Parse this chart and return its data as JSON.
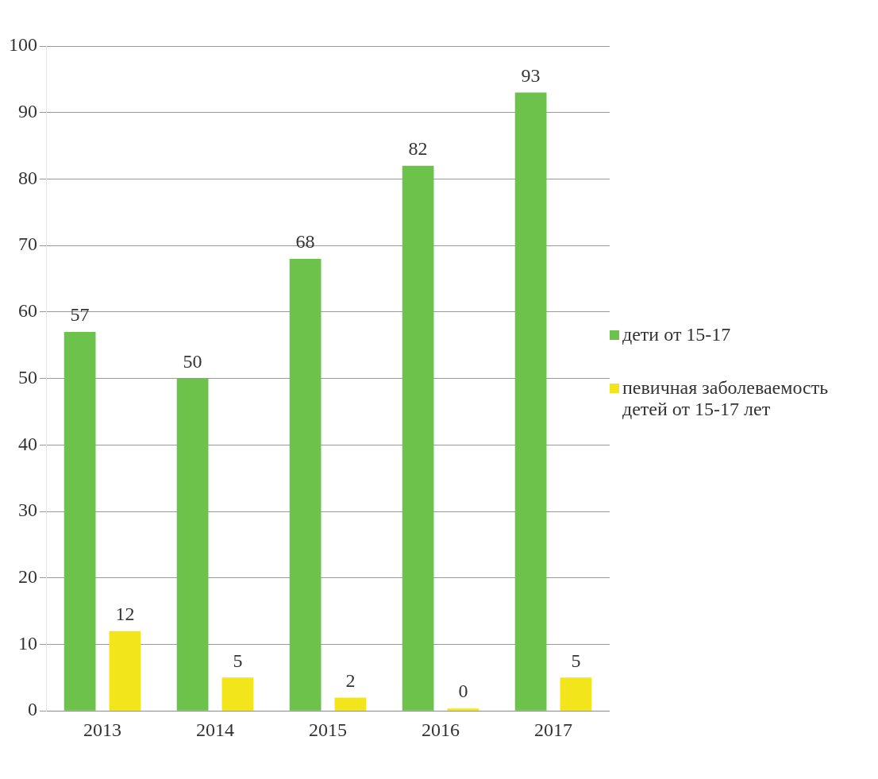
{
  "chart_data": {
    "type": "bar",
    "categories": [
      "2013",
      "2014",
      "2015",
      "2016",
      "2017"
    ],
    "series": [
      {
        "name": "дети от 15-17",
        "color": "#6cc24a",
        "values": [
          57,
          50,
          68,
          82,
          93
        ]
      },
      {
        "name": "певичная заболеваемость детей от 15-17 лет",
        "color": "#f2e51c",
        "values": [
          12,
          5,
          2,
          0,
          5
        ]
      }
    ],
    "ylim": [
      0,
      100
    ],
    "yticks": [
      0,
      10,
      20,
      30,
      40,
      50,
      60,
      70,
      80,
      90,
      100
    ],
    "grid": "y",
    "legend": "right",
    "data_labels": true
  }
}
